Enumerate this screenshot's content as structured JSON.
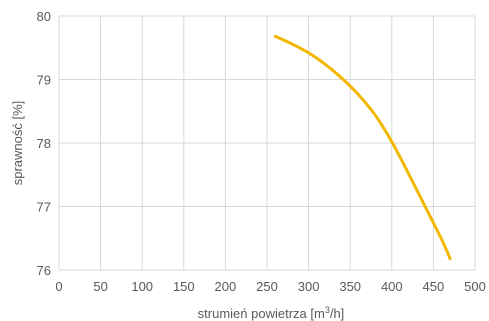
{
  "chart_data": {
    "type": "line",
    "title": "",
    "xlabel": "strumień powietrza [m",
    "xlabel_sup": "3",
    "xlabel_tail": "/h]",
    "ylabel": "sprawność [%]",
    "xlim": [
      0,
      500
    ],
    "ylim": [
      76,
      80
    ],
    "x_ticks": [
      "0",
      "50",
      "100",
      "150",
      "200",
      "250",
      "300",
      "350",
      "400",
      "450",
      "500"
    ],
    "y_ticks": [
      "76",
      "77",
      "78",
      "79",
      "80"
    ],
    "grid": true,
    "legend": "none",
    "series": [
      {
        "color": "#f2b800",
        "x": [
          260,
          280,
          300,
          320,
          340,
          360,
          380,
          400,
          420,
          440,
          460,
          470
        ],
        "y": [
          79.68,
          79.56,
          79.42,
          79.24,
          79.02,
          78.76,
          78.44,
          78.02,
          77.52,
          77.0,
          76.48,
          76.18
        ]
      }
    ]
  }
}
